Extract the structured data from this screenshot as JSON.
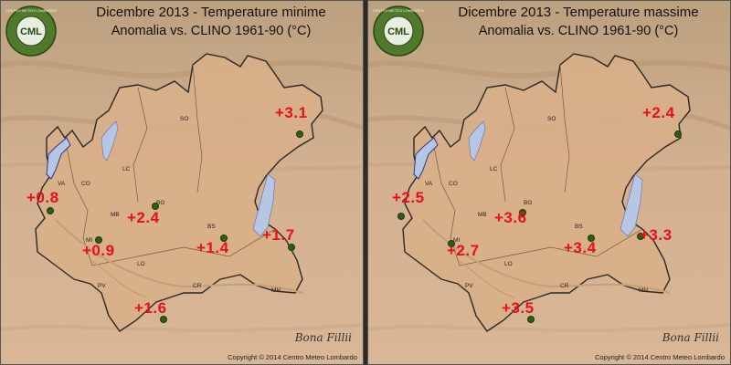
{
  "panels": [
    {
      "title": "Dicembre 2013 - Temperature minime",
      "subtitle": "Anomalia vs. CLINO 1961-90 (°C)",
      "values": {
        "so": "+3.1",
        "va": "+0.8",
        "bg": "+2.4",
        "mi": "+0.9",
        "bs": "+1.4",
        "gd": "+1.7",
        "cr": "+1.6"
      }
    },
    {
      "title": "Dicembre 2013 - Temperature massime",
      "subtitle": "Anomalia vs. CLINO 1961-90 (°C)",
      "values": {
        "so": "+2.4",
        "va": "+2.5",
        "bg": "+3.6",
        "mi": "+2.7",
        "bs": "+3.4",
        "gd": "+3.3",
        "cr": "+3.5"
      }
    }
  ],
  "cities": {
    "so": "SO",
    "va": "VA",
    "co": "CO",
    "lc": "LC",
    "bg": "BG",
    "mb": "MB",
    "mi": "MI",
    "bs": "BS",
    "lo": "LO",
    "pv": "PV",
    "cr": "CR",
    "mn": "MN"
  },
  "logo_text": {
    "top": "CENTRO METEO LOMBARDO",
    "center": "CML"
  },
  "copyright": "Copyright © 2014 Centro Meteo Lombardo",
  "signature": "Bona Fillii"
}
